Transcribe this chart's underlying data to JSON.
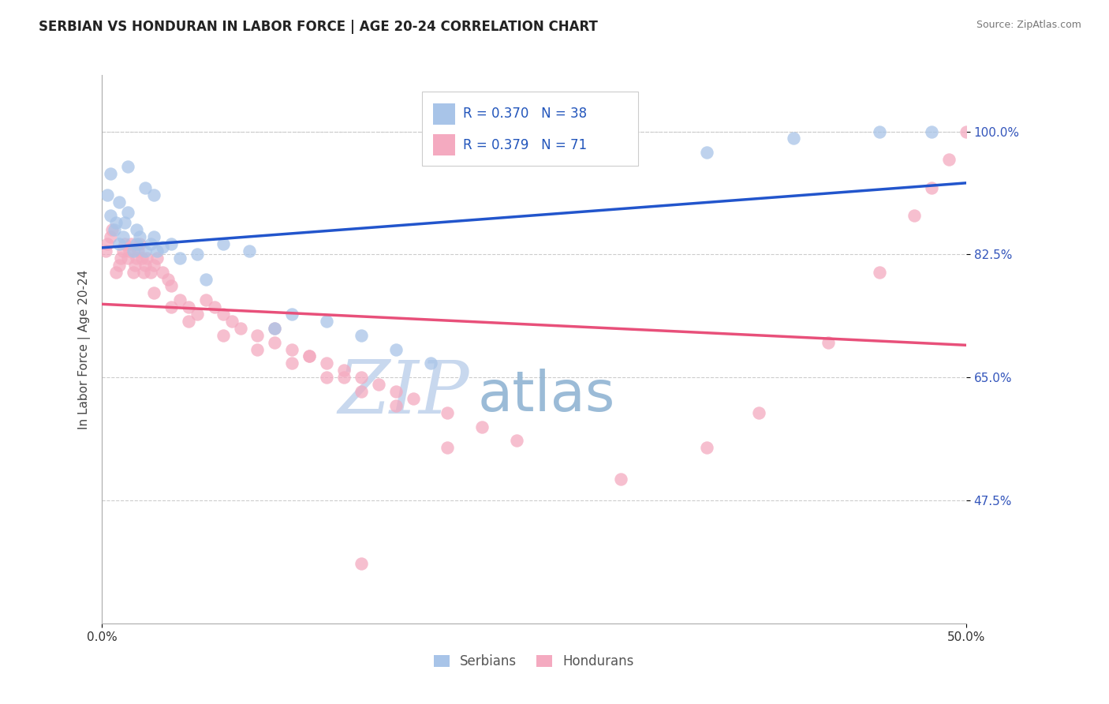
{
  "title": "SERBIAN VS HONDURAN IN LABOR FORCE | AGE 20-24 CORRELATION CHART",
  "source_text": "Source: ZipAtlas.com",
  "ylabel": "In Labor Force | Age 20-24",
  "xlim": [
    0.0,
    50.0
  ],
  "ylim": [
    30.0,
    108.0
  ],
  "ytick_vals": [
    47.5,
    65.0,
    82.5,
    100.0
  ],
  "xtick_vals": [
    0.0,
    50.0
  ],
  "xtick_labels": [
    "0.0%",
    "50.0%"
  ],
  "ytick_labels": [
    "47.5%",
    "65.0%",
    "82.5%",
    "100.0%"
  ],
  "serbian_R": 0.37,
  "serbian_N": 38,
  "honduran_R": 0.379,
  "honduran_N": 71,
  "serbian_color": "#a8c4e8",
  "honduran_color": "#f4aac0",
  "trend_blue": "#2255cc",
  "trend_pink": "#e8507a",
  "watermark_zip": "ZIP",
  "watermark_atlas": "atlas",
  "watermark_color_zip": "#c8d8ee",
  "watermark_color_atlas": "#8ab0d0",
  "title_fontsize": 12,
  "source_fontsize": 9,
  "axis_label_fontsize": 11,
  "tick_fontsize": 11,
  "legend_fontsize": 12,
  "ytick_color": "#3355bb",
  "xtick_color": "#333333",
  "grid_color": "#cccccc",
  "legend_text_color": "#2255bb",
  "bottom_legend_color": "#555555",
  "serb_x": [
    0.3,
    0.5,
    0.7,
    0.8,
    1.0,
    1.2,
    1.3,
    1.5,
    1.8,
    2.0,
    2.2,
    2.5,
    2.8,
    3.0,
    3.5,
    4.0,
    4.5,
    5.5,
    7.0,
    8.5,
    10.0,
    11.0,
    13.0,
    15.0,
    17.0,
    19.0,
    6.0,
    3.2,
    2.0,
    1.0,
    0.5,
    1.5,
    2.5,
    3.0,
    35.0,
    40.0,
    45.0,
    48.0
  ],
  "serb_y": [
    91.0,
    88.0,
    86.0,
    87.0,
    84.0,
    85.0,
    87.0,
    88.5,
    83.0,
    84.0,
    85.0,
    83.0,
    84.0,
    85.0,
    83.5,
    84.0,
    82.0,
    82.5,
    84.0,
    83.0,
    72.0,
    74.0,
    73.0,
    71.0,
    69.0,
    67.0,
    79.0,
    83.0,
    86.0,
    90.0,
    94.0,
    95.0,
    92.0,
    91.0,
    97.0,
    99.0,
    100.0,
    100.0
  ],
  "hond_x": [
    0.2,
    0.3,
    0.5,
    0.6,
    0.8,
    1.0,
    1.1,
    1.2,
    1.3,
    1.5,
    1.6,
    1.7,
    1.8,
    1.9,
    2.0,
    2.1,
    2.2,
    2.3,
    2.4,
    2.5,
    2.6,
    2.8,
    3.0,
    3.2,
    3.5,
    3.8,
    4.0,
    4.5,
    5.0,
    5.5,
    6.0,
    6.5,
    7.0,
    7.5,
    8.0,
    9.0,
    10.0,
    11.0,
    12.0,
    13.0,
    14.0,
    15.0,
    16.0,
    17.0,
    18.0,
    20.0,
    22.0,
    24.0,
    3.0,
    4.0,
    5.0,
    7.0,
    9.0,
    11.0,
    13.0,
    15.0,
    17.0,
    10.0,
    12.0,
    14.0,
    30.0,
    35.0,
    38.0,
    42.0,
    45.0,
    47.0,
    48.0,
    49.0,
    50.0,
    20.0,
    15.0
  ],
  "hond_y": [
    83.0,
    84.0,
    85.0,
    86.0,
    80.0,
    81.0,
    82.0,
    83.0,
    84.0,
    82.0,
    83.0,
    84.0,
    80.0,
    81.0,
    82.0,
    83.0,
    84.0,
    82.0,
    80.0,
    81.0,
    82.0,
    80.0,
    81.0,
    82.0,
    80.0,
    79.0,
    78.0,
    76.0,
    75.0,
    74.0,
    76.0,
    75.0,
    74.0,
    73.0,
    72.0,
    71.0,
    70.0,
    69.0,
    68.0,
    67.0,
    66.0,
    65.0,
    64.0,
    63.0,
    62.0,
    60.0,
    58.0,
    56.0,
    77.0,
    75.0,
    73.0,
    71.0,
    69.0,
    67.0,
    65.0,
    63.0,
    61.0,
    72.0,
    68.0,
    65.0,
    50.5,
    55.0,
    60.0,
    70.0,
    80.0,
    88.0,
    92.0,
    96.0,
    100.0,
    55.0,
    38.5
  ]
}
